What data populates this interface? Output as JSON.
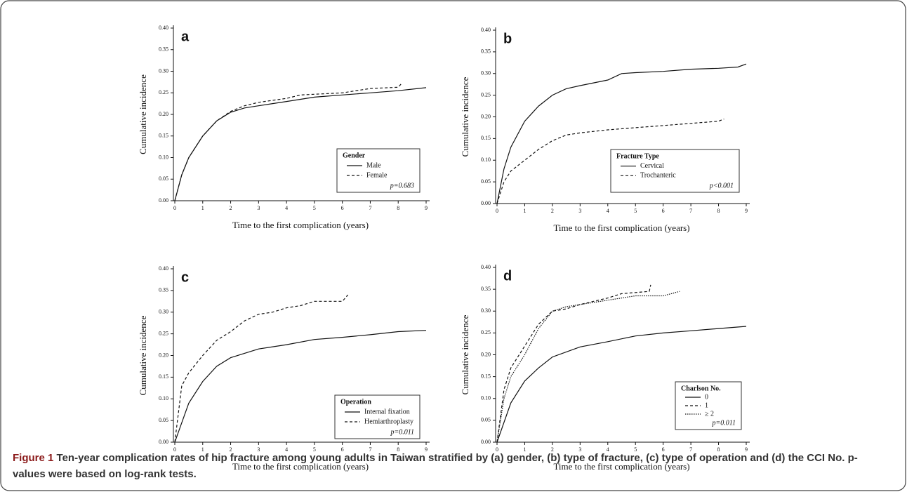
{
  "chart_data": [
    {
      "type": "line",
      "label": "a",
      "xlabel": "Time to the first complication (years)",
      "ylabel": "Cumulative incidence",
      "xlim": [
        0,
        9
      ],
      "ylim": [
        0,
        0.4
      ],
      "xticks": [
        0,
        1,
        2,
        3,
        4,
        5,
        6,
        7,
        8,
        9
      ],
      "yticks": [
        {
          "value": 0,
          "label": "0.00"
        },
        {
          "value": 0.05,
          "label": "0.05"
        },
        {
          "value": 0.1,
          "label": "0.10"
        },
        {
          "value": 0.15,
          "label": "0.15"
        },
        {
          "value": 0.2,
          "label": "0.20"
        },
        {
          "value": 0.25,
          "label": "0.25"
        },
        {
          "value": 0.3,
          "label": "0.30"
        },
        {
          "value": 0.35,
          "label": "0.35"
        },
        {
          "value": 0.4,
          "label": "0.40"
        }
      ],
      "legend_title": "Gender",
      "p_value": "p=0.683",
      "series": [
        {
          "name": "Male",
          "color": "#111",
          "dash": "solid",
          "x": [
            0,
            0.25,
            0.5,
            1,
            1.5,
            2,
            2.5,
            3,
            4,
            5,
            6,
            7,
            8,
            9
          ],
          "values": [
            0,
            0.06,
            0.1,
            0.15,
            0.185,
            0.205,
            0.215,
            0.22,
            0.23,
            0.24,
            0.245,
            0.25,
            0.255,
            0.262
          ]
        },
        {
          "name": "Female",
          "color": "#111",
          "dash": "dashed",
          "x": [
            0,
            0.25,
            0.5,
            1,
            1.5,
            2,
            2.5,
            3,
            4,
            4.5,
            6,
            7,
            8,
            8.1
          ],
          "values": [
            0,
            0.06,
            0.1,
            0.15,
            0.185,
            0.207,
            0.22,
            0.228,
            0.237,
            0.245,
            0.25,
            0.26,
            0.263,
            0.27
          ]
        }
      ]
    },
    {
      "type": "line",
      "label": "b",
      "xlabel": "Time to the first complication (years)",
      "ylabel": "Cumulative incidence",
      "xlim": [
        0,
        9
      ],
      "ylim": [
        0,
        0.4
      ],
      "xticks": [
        0,
        1,
        2,
        3,
        4,
        5,
        6,
        7,
        8,
        9
      ],
      "yticks": [
        {
          "value": 0,
          "label": "0.00"
        },
        {
          "value": 0.05,
          "label": "0.05"
        },
        {
          "value": 0.1,
          "label": "0.10"
        },
        {
          "value": 0.15,
          "label": "0.15"
        },
        {
          "value": 0.2,
          "label": "0.20"
        },
        {
          "value": 0.25,
          "label": "0.25"
        },
        {
          "value": 0.3,
          "label": "0.30"
        },
        {
          "value": 0.35,
          "label": "0.35"
        },
        {
          "value": 0.4,
          "label": "0.40"
        }
      ],
      "legend_title": "Fracture Type",
      "p_value": "p<0.001",
      "series": [
        {
          "name": "Cervical",
          "color": "#111",
          "dash": "solid",
          "x": [
            0,
            0.25,
            0.5,
            1,
            1.5,
            2,
            2.5,
            3,
            4,
            4.5,
            5,
            6,
            7,
            8,
            8.7,
            9
          ],
          "values": [
            0,
            0.08,
            0.13,
            0.19,
            0.225,
            0.25,
            0.265,
            0.272,
            0.285,
            0.3,
            0.302,
            0.305,
            0.31,
            0.312,
            0.315,
            0.322
          ]
        },
        {
          "name": "Trochanteric",
          "color": "#111",
          "dash": "dashed",
          "x": [
            0,
            0.25,
            0.5,
            1,
            1.5,
            2,
            2.5,
            3,
            4,
            5,
            6,
            7,
            8,
            8.2
          ],
          "values": [
            0,
            0.05,
            0.075,
            0.1,
            0.125,
            0.145,
            0.158,
            0.163,
            0.17,
            0.175,
            0.18,
            0.185,
            0.19,
            0.195
          ]
        }
      ]
    },
    {
      "type": "line",
      "label": "c",
      "xlabel": "Time to the first complication (years)",
      "ylabel": "Cumulative incidence",
      "xlim": [
        0,
        9
      ],
      "ylim": [
        0,
        0.4
      ],
      "xticks": [
        0,
        1,
        2,
        3,
        4,
        5,
        6,
        7,
        8,
        9
      ],
      "yticks": [
        {
          "value": 0,
          "label": "0.00"
        },
        {
          "value": 0.05,
          "label": "0.05"
        },
        {
          "value": 0.1,
          "label": "0.10"
        },
        {
          "value": 0.15,
          "label": "0.15"
        },
        {
          "value": 0.2,
          "label": "0.20"
        },
        {
          "value": 0.25,
          "label": "0.25"
        },
        {
          "value": 0.3,
          "label": "0.30"
        },
        {
          "value": 0.35,
          "label": "0.35"
        },
        {
          "value": 0.4,
          "label": "0.40"
        }
      ],
      "legend_title": "Operation",
      "p_value": "p=0.011",
      "series": [
        {
          "name": "Internal fixation",
          "color": "#111",
          "dash": "solid",
          "x": [
            0,
            0.5,
            1,
            1.5,
            2,
            3,
            4,
            5,
            6,
            7,
            8,
            9
          ],
          "values": [
            0,
            0.09,
            0.14,
            0.175,
            0.195,
            0.215,
            0.225,
            0.237,
            0.242,
            0.248,
            0.255,
            0.258
          ]
        },
        {
          "name": "Hemiarthroplasty",
          "color": "#111",
          "dash": "dashed",
          "x": [
            0,
            0.25,
            0.5,
            1,
            1.5,
            2,
            2.5,
            3,
            3.5,
            4,
            4.5,
            5,
            6,
            6.2
          ],
          "values": [
            0,
            0.13,
            0.16,
            0.2,
            0.235,
            0.255,
            0.28,
            0.295,
            0.3,
            0.31,
            0.315,
            0.325,
            0.325,
            0.34
          ]
        }
      ]
    },
    {
      "type": "line",
      "label": "d",
      "xlabel": "Time to the first complication (years)",
      "ylabel": "Cumulative incidence",
      "xlim": [
        0,
        9
      ],
      "ylim": [
        0,
        0.4
      ],
      "xticks": [
        0,
        1,
        2,
        3,
        4,
        5,
        6,
        7,
        8,
        9
      ],
      "yticks": [
        {
          "value": 0,
          "label": "0.00"
        },
        {
          "value": 0.05,
          "label": "0.05"
        },
        {
          "value": 0.1,
          "label": "0.10"
        },
        {
          "value": 0.15,
          "label": "0.15"
        },
        {
          "value": 0.2,
          "label": "0.20"
        },
        {
          "value": 0.25,
          "label": "0.25"
        },
        {
          "value": 0.3,
          "label": "0.30"
        },
        {
          "value": 0.35,
          "label": "0.35"
        },
        {
          "value": 0.4,
          "label": "0.40"
        }
      ],
      "legend_title": "Charlson No.",
      "p_value": "p=0.011",
      "series": [
        {
          "name": "0",
          "color": "#111",
          "dash": "solid",
          "x": [
            0,
            0.5,
            1,
            1.5,
            2,
            3,
            4,
            5,
            6,
            7,
            8,
            9
          ],
          "values": [
            0,
            0.09,
            0.14,
            0.17,
            0.195,
            0.218,
            0.23,
            0.243,
            0.25,
            0.255,
            0.26,
            0.265
          ]
        },
        {
          "name": "1",
          "color": "#111",
          "dash": "dashed",
          "x": [
            0,
            0.25,
            0.5,
            1,
            1.5,
            2,
            2.5,
            3,
            4,
            4.5,
            5.5,
            5.55
          ],
          "values": [
            0,
            0.12,
            0.17,
            0.22,
            0.27,
            0.3,
            0.305,
            0.315,
            0.33,
            0.34,
            0.345,
            0.36
          ]
        },
        {
          "name": "≥ 2",
          "color": "#111",
          "dash": "dotted",
          "x": [
            0,
            0.25,
            0.5,
            1,
            1.5,
            2,
            2.5,
            3,
            4,
            5,
            6,
            6.6
          ],
          "values": [
            0,
            0.1,
            0.15,
            0.2,
            0.26,
            0.3,
            0.31,
            0.315,
            0.325,
            0.335,
            0.335,
            0.345
          ]
        }
      ]
    }
  ],
  "caption_label": "Figure 1",
  "caption": "Ten-year complication rates of hip fracture among young adults in Taiwan stratified by (a) gender, (b) type of fracture, (c) type of operation and (d) the CCI No. p-values were based on log-rank tests."
}
